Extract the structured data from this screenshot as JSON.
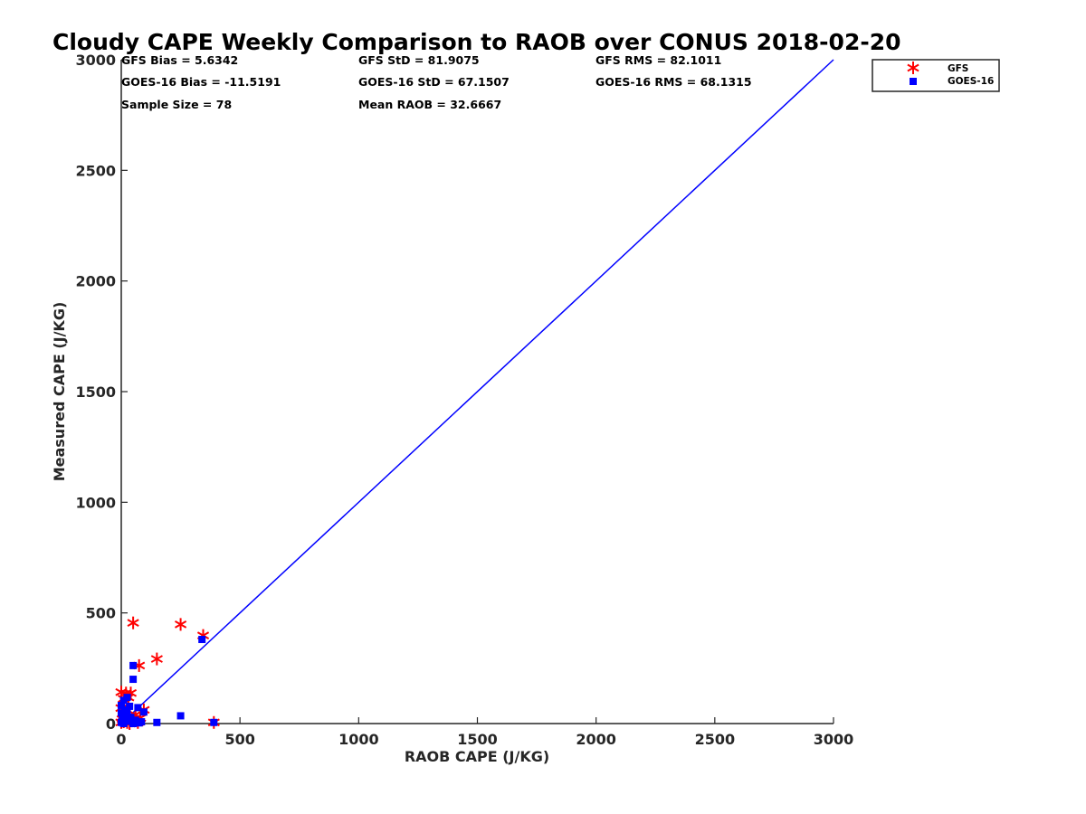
{
  "colors": {
    "gfs": "#ff0000",
    "goes": "#0000ff",
    "line": "#0000ff",
    "axis": "#262626"
  },
  "stats": {
    "gfs_bias": "GFS Bias = 5.6342",
    "gfs_std": "GFS StD = 81.9075",
    "gfs_rms": "GFS RMS = 82.1011",
    "goes_bias": "GOES-16 Bias = -11.5191",
    "goes_std": "GOES-16 StD = 67.1507",
    "goes_rms": "GOES-16 RMS = 68.1315",
    "sample_size": "Sample Size = 78",
    "mean_raob": "Mean RAOB = 32.6667"
  },
  "chart_data": {
    "type": "scatter",
    "title": "Cloudy CAPE Weekly Comparison to RAOB over CONUS 2018-02-20",
    "xlabel": "RAOB CAPE (J/KG)",
    "ylabel": "Measured CAPE (J/KG)",
    "xlim": [
      0,
      3000
    ],
    "ylim": [
      0,
      3000
    ],
    "xticks": [
      0,
      500,
      1000,
      1500,
      2000,
      2500,
      3000
    ],
    "yticks": [
      0,
      500,
      1000,
      1500,
      2000,
      2500,
      3000
    ],
    "legend_position": "top-right",
    "grid": false,
    "reference_line": {
      "x": [
        0,
        3000
      ],
      "y": [
        0,
        3000
      ]
    },
    "series": [
      {
        "name": "GFS",
        "marker": "asterisk",
        "points": [
          [
            50,
            455
          ],
          [
            250,
            448
          ],
          [
            345,
            398
          ],
          [
            150,
            292
          ],
          [
            75,
            262
          ],
          [
            0,
            142
          ],
          [
            20,
            138
          ],
          [
            40,
            138
          ],
          [
            10,
            112
          ],
          [
            30,
            118
          ],
          [
            95,
            62
          ],
          [
            60,
            40
          ],
          [
            30,
            30
          ],
          [
            0,
            70
          ],
          [
            15,
            50
          ],
          [
            5,
            20
          ],
          [
            45,
            12
          ],
          [
            70,
            5
          ],
          [
            25,
            5
          ],
          [
            0,
            5
          ],
          [
            390,
            5
          ],
          [
            80,
            25
          ],
          [
            10,
            8
          ],
          [
            55,
            22
          ],
          [
            35,
            0
          ]
        ]
      },
      {
        "name": "GOES-16",
        "marker": "square",
        "points": [
          [
            340,
            380
          ],
          [
            50,
            262
          ],
          [
            50,
            200
          ],
          [
            25,
            118
          ],
          [
            10,
            105
          ],
          [
            0,
            82
          ],
          [
            15,
            62
          ],
          [
            35,
            78
          ],
          [
            70,
            72
          ],
          [
            95,
            52
          ],
          [
            0,
            48
          ],
          [
            20,
            38
          ],
          [
            40,
            28
          ],
          [
            5,
            20
          ],
          [
            60,
            15
          ],
          [
            30,
            10
          ],
          [
            0,
            5
          ],
          [
            75,
            3
          ],
          [
            10,
            0
          ],
          [
            50,
            0
          ],
          [
            150,
            5
          ],
          [
            250,
            35
          ],
          [
            390,
            5
          ],
          [
            25,
            55
          ],
          [
            85,
            8
          ]
        ]
      }
    ]
  }
}
